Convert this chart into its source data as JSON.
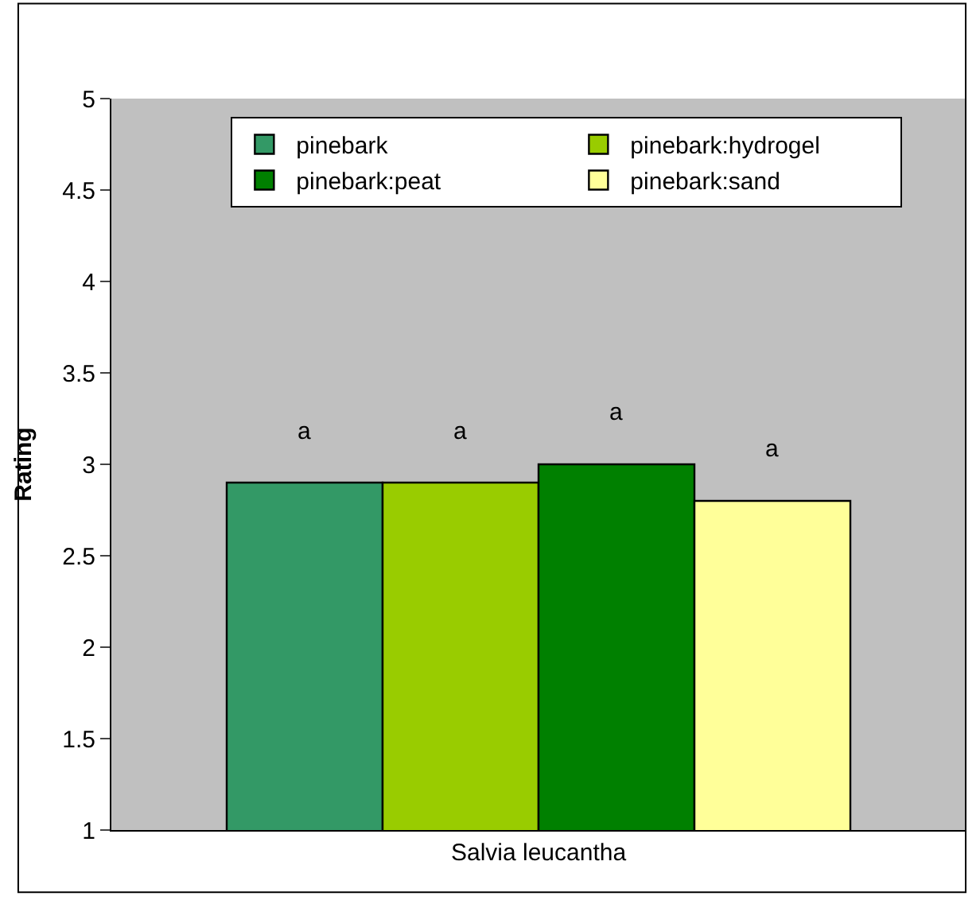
{
  "chart_data": {
    "type": "bar",
    "ylabel": "Rating",
    "categories": [
      "Salvia leucantha"
    ],
    "series": [
      {
        "name": "pinebark",
        "color": "#339966",
        "values": [
          2.9
        ]
      },
      {
        "name": "pinebark:hydrogel",
        "color": "#99cc00",
        "values": [
          2.9
        ]
      },
      {
        "name": "pinebark:peat",
        "color": "#008000",
        "values": [
          3.0
        ]
      },
      {
        "name": "pinebark:sand",
        "color": "#ffff99",
        "values": [
          2.8
        ]
      }
    ],
    "annotations": [
      "a",
      "a",
      "a",
      "a"
    ],
    "ylim": [
      1,
      5
    ],
    "yticks": [
      1,
      1.5,
      2,
      2.5,
      3,
      3.5,
      4,
      4.5,
      5
    ],
    "grid": false,
    "legend": "top"
  }
}
